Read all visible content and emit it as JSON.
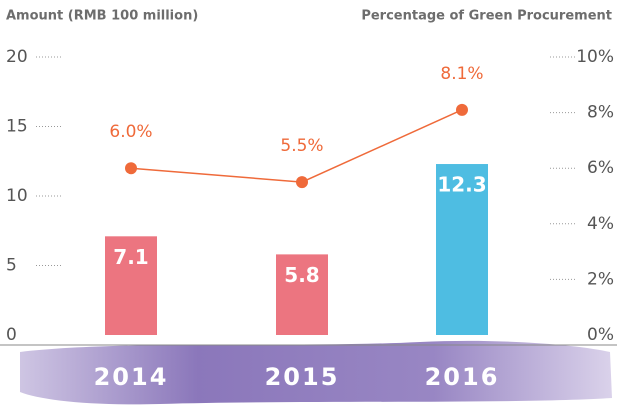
{
  "chart_data": {
    "type": "bar",
    "y_label": "Amount (RMB 100 million)",
    "y2_label": "Percentage of Green Procurement",
    "categories": [
      "2014",
      "2015",
      "2016"
    ],
    "series": [
      {
        "type": "bar",
        "colors": [
          "#ea6672",
          "#ea6672",
          "#3bb6df"
        ],
        "values": [
          7.1,
          5.8,
          12.3
        ]
      },
      {
        "type": "line",
        "axis": "y2",
        "color": "#ef6a3a",
        "values": [
          6.0,
          5.5,
          8.1
        ],
        "value_labels": [
          "6.0%",
          "5.5%",
          "8.1%"
        ]
      }
    ],
    "ylim": [
      0,
      20
    ],
    "yticks": [
      0,
      5,
      10,
      15,
      20
    ],
    "y2lim": [
      0,
      10
    ],
    "y2ticks": [
      {
        "value": 0,
        "label": "0%"
      },
      {
        "value": 2,
        "label": "2%"
      },
      {
        "value": 4,
        "label": "4%"
      },
      {
        "value": 6,
        "label": "6%"
      },
      {
        "value": 8,
        "label": "8%"
      },
      {
        "value": 10,
        "label": "10%"
      }
    ]
  }
}
